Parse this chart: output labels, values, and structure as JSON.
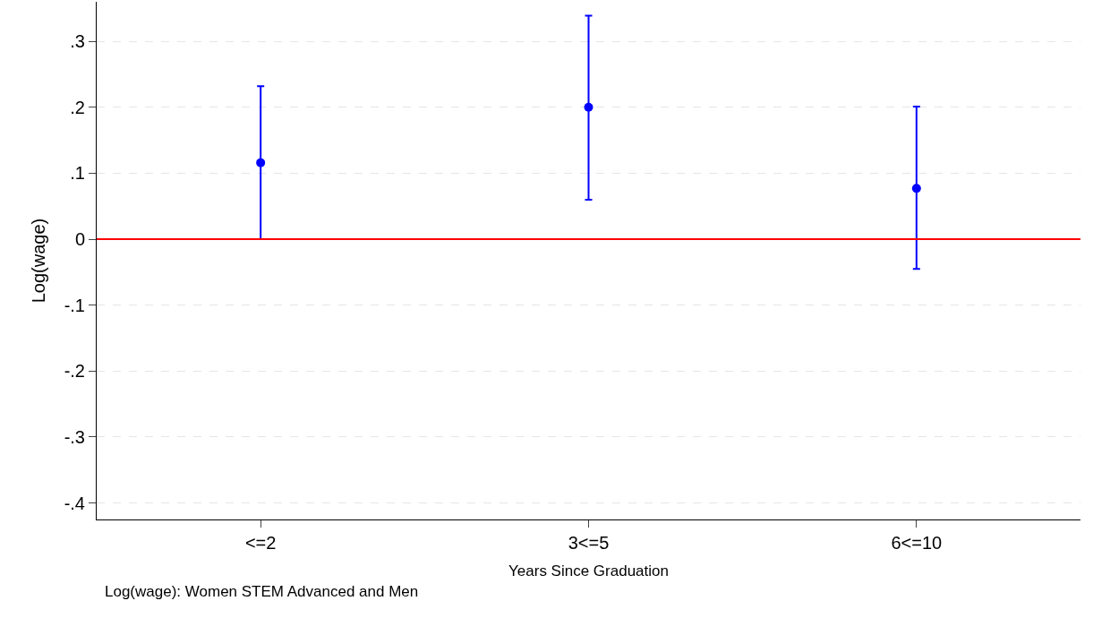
{
  "chart_data": {
    "type": "scatter",
    "xlabel": "Years Since Graduation",
    "ylabel": "Log(wage)",
    "categories": [
      "<=2",
      "3<=5",
      "6<=10"
    ],
    "series": [
      {
        "color": "#0000ff",
        "values": [
          0.116,
          0.2,
          0.077
        ],
        "errors": [
          [
            0.0,
            0.232
          ],
          [
            0.06,
            0.339
          ],
          [
            -0.045,
            0.201
          ]
        ]
      }
    ],
    "ylim": [
      -0.425,
      0.36
    ],
    "yticks": [
      {
        "value": -0.4,
        "label": "-.4"
      },
      {
        "value": -0.3,
        "label": "-.3"
      },
      {
        "value": -0.2,
        "label": "-.2"
      },
      {
        "value": -0.1,
        "label": "-.1"
      },
      0,
      {
        "value": 0.1,
        "label": ".1"
      },
      {
        "value": 0.2,
        "label": ".2"
      },
      {
        "value": 0.3,
        "label": ".3"
      }
    ],
    "ref_lines": [
      {
        "axis": "y",
        "value": 0,
        "color": "#ff0000"
      }
    ],
    "annotations": [
      "Log(wage): Women STEM Advanced and Men"
    ],
    "grid": "y",
    "marker": "circle"
  }
}
